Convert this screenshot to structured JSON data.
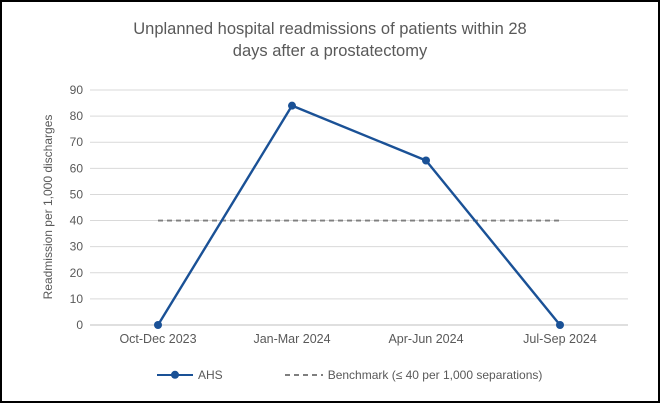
{
  "frame": {
    "border_color": "#000000",
    "background": "#ffffff"
  },
  "chart_data": {
    "type": "line",
    "title": "Unplanned hospital readmissions of patients within 28 days after a prostatectomy",
    "title_lines": [
      "Unplanned hospital readmissions of patients within 28",
      "days after a prostatectomy"
    ],
    "ylabel": "Readmission per 1,000 discharges",
    "xlabel": "",
    "categories": [
      "Oct-Dec 2023",
      "Jan-Mar 2024",
      "Apr-Jun 2024",
      "Jul-Sep 2024"
    ],
    "series": [
      {
        "name": "AHS",
        "type": "line-markers",
        "values": [
          0,
          84,
          63,
          0
        ],
        "color": "#1a5196"
      },
      {
        "name": "Benchmark (≤ 40 per 1,000 separations)",
        "type": "constant-dashed",
        "value": 40,
        "color": "#7f7f7f"
      }
    ],
    "ylim": [
      0,
      90
    ],
    "yticks": [
      0,
      10,
      20,
      30,
      40,
      50,
      60,
      70,
      80,
      90
    ],
    "grid": true,
    "gridline_color": "#d9d9d9",
    "axis_line_color": "#bfbfbf",
    "text_color": "#595959",
    "legend_position": "bottom"
  }
}
